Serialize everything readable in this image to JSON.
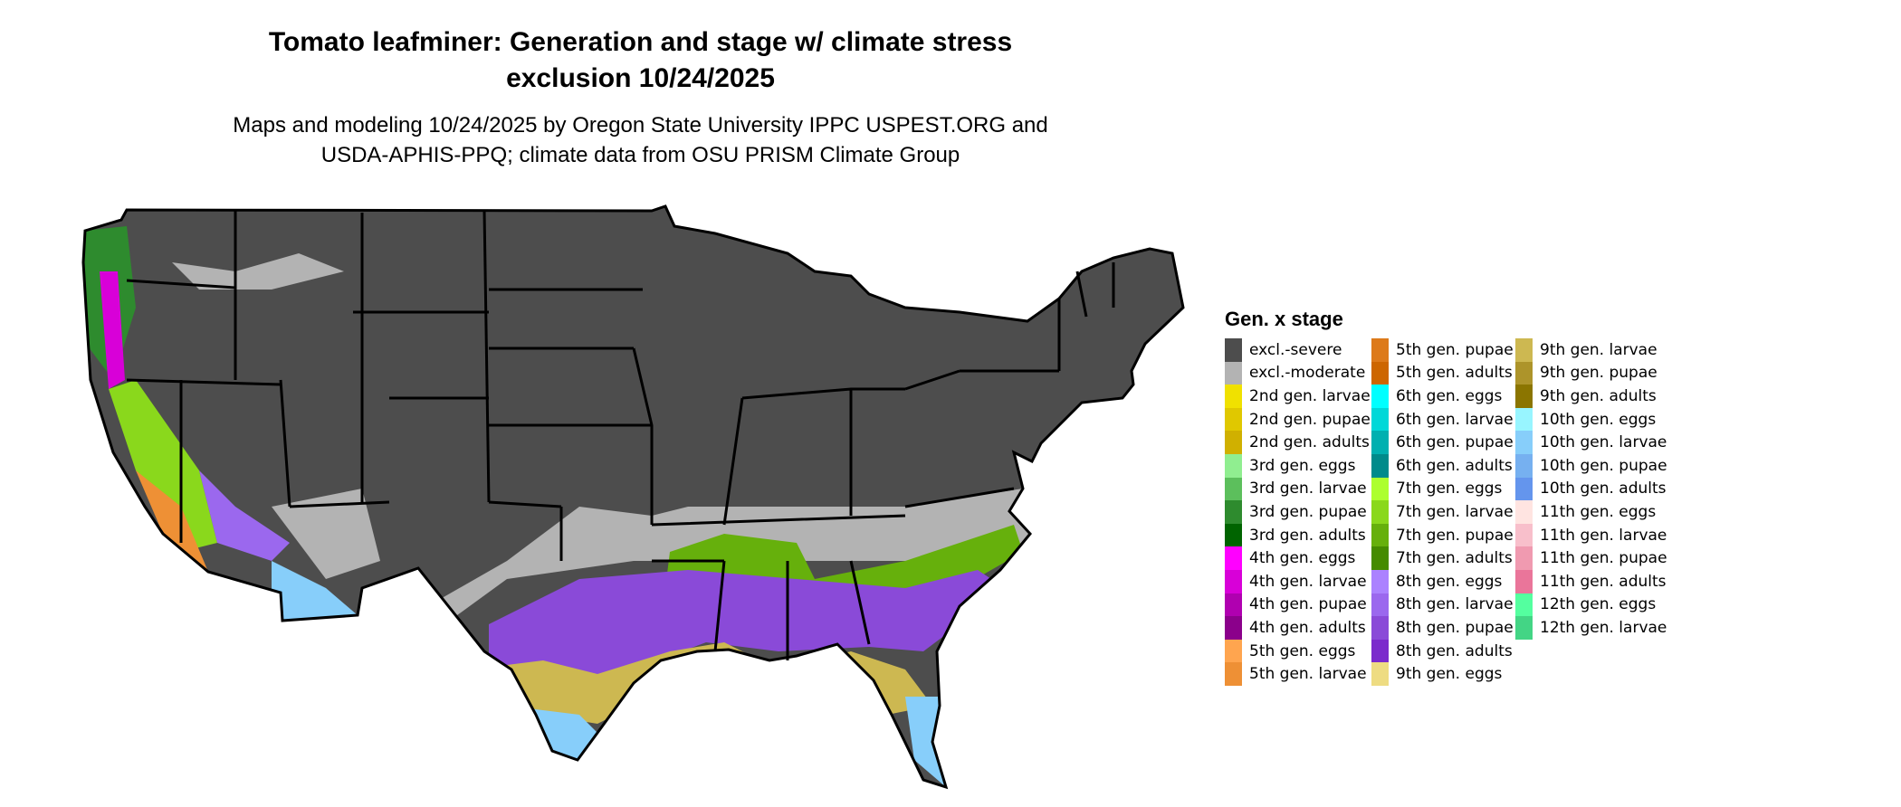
{
  "title_lines": [
    "Tomato leafminer: Generation and stage w/ climate stress",
    "exclusion 10/24/2025"
  ],
  "subtitle_lines": [
    "Maps and modeling 10/24/2025 by Oregon State University IPPC USPEST.ORG and",
    "USDA-APHIS-PPQ; climate data from OSU PRISM Climate Group"
  ],
  "legend": {
    "title": "Gen. x stage",
    "columns": [
      [
        {
          "label": "excl.-severe",
          "color": "#4d4d4d"
        },
        {
          "label": "excl.-moderate",
          "color": "#b3b3b3"
        },
        {
          "label": "2nd gen. larvae",
          "color": "#f0e100"
        },
        {
          "label": "2nd gen. pupae",
          "color": "#e0c800"
        },
        {
          "label": "2nd gen. adults",
          "color": "#d0b000"
        },
        {
          "label": "3rd gen. eggs",
          "color": "#90ee90"
        },
        {
          "label": "3rd gen. larvae",
          "color": "#5cbf5c"
        },
        {
          "label": "3rd gen. pupae",
          "color": "#2e8b2e"
        },
        {
          "label": "3rd gen. adults",
          "color": "#006400"
        },
        {
          "label": "4th gen. eggs",
          "color": "#ff00ff"
        },
        {
          "label": "4th gen. larvae",
          "color": "#d800d8"
        },
        {
          "label": "4th gen. pupae",
          "color": "#b000b0"
        },
        {
          "label": "4th gen. adults",
          "color": "#8b008b"
        },
        {
          "label": "5th gen. eggs",
          "color": "#ffa54f"
        },
        {
          "label": "5th gen. larvae",
          "color": "#ee9035"
        }
      ],
      [
        {
          "label": "5th gen. pupae",
          "color": "#dd7a1a"
        },
        {
          "label": "5th gen. adults",
          "color": "#cd6600"
        },
        {
          "label": "6th gen. eggs",
          "color": "#00ffff"
        },
        {
          "label": "6th gen. larvae",
          "color": "#00d8d8"
        },
        {
          "label": "6th gen. pupae",
          "color": "#00b0b0"
        },
        {
          "label": "6th gen. adults",
          "color": "#008b8b"
        },
        {
          "label": "7th gen. eggs",
          "color": "#adff2f"
        },
        {
          "label": "7th gen. larvae",
          "color": "#8ad81c"
        },
        {
          "label": "7th gen. pupae",
          "color": "#66b00c"
        },
        {
          "label": "7th gen. adults",
          "color": "#458b00"
        },
        {
          "label": "8th gen. eggs",
          "color": "#ab82ff"
        },
        {
          "label": "8th gen. larvae",
          "color": "#9b68ee"
        },
        {
          "label": "8th gen. pupae",
          "color": "#8a4ad8"
        },
        {
          "label": "8th gen. adults",
          "color": "#7b2bcc"
        },
        {
          "label": "9th gen. eggs",
          "color": "#eedc82"
        }
      ],
      [
        {
          "label": "9th gen. larvae",
          "color": "#cdb851"
        },
        {
          "label": "9th gen. pupae",
          "color": "#ad942a"
        },
        {
          "label": "9th gen. adults",
          "color": "#8b7500"
        },
        {
          "label": "10th gen. eggs",
          "color": "#98f5ff"
        },
        {
          "label": "10th gen. larvae",
          "color": "#87cefa"
        },
        {
          "label": "10th gen. pupae",
          "color": "#76b0f0"
        },
        {
          "label": "10th gen. adults",
          "color": "#6495ed"
        },
        {
          "label": "11th gen. eggs",
          "color": "#ffe4e1"
        },
        {
          "label": "11th gen. larvae",
          "color": "#f8bfcb"
        },
        {
          "label": "11th gen. pupae",
          "color": "#f09ab0"
        },
        {
          "label": "11th gen. adults",
          "color": "#ea759a"
        },
        {
          "label": "12th gen. eggs",
          "color": "#54ff9f"
        },
        {
          "label": "12th gen. larvae",
          "color": "#43d585"
        }
      ]
    ]
  }
}
